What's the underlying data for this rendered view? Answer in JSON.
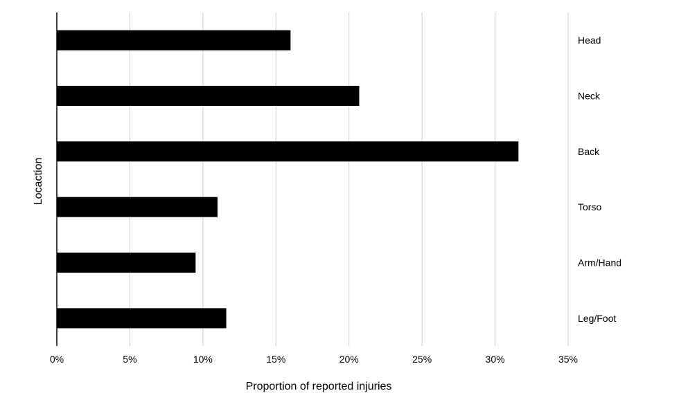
{
  "chart_data": {
    "type": "bar",
    "orientation": "horizontal",
    "categories": [
      "Head",
      "Neck",
      "Back",
      "Torso",
      "Arm/Hand",
      "Leg/Foot"
    ],
    "values": [
      0.16,
      0.207,
      0.316,
      0.11,
      0.095,
      0.116
    ],
    "xlabel": "Proportion of reported injuries",
    "ylabel": "Locaction",
    "xlim": [
      0,
      0.35
    ],
    "xticks": [
      0,
      0.05,
      0.1,
      0.15,
      0.2,
      0.25,
      0.3,
      0.35
    ],
    "xtick_labels": [
      "0%",
      "5%",
      "10%",
      "15%",
      "20%",
      "25%",
      "30%",
      "35%"
    ],
    "grid": "vertical",
    "category_labels_position": "right",
    "bar_color": "#000000",
    "grid_color": "#cccccc"
  }
}
